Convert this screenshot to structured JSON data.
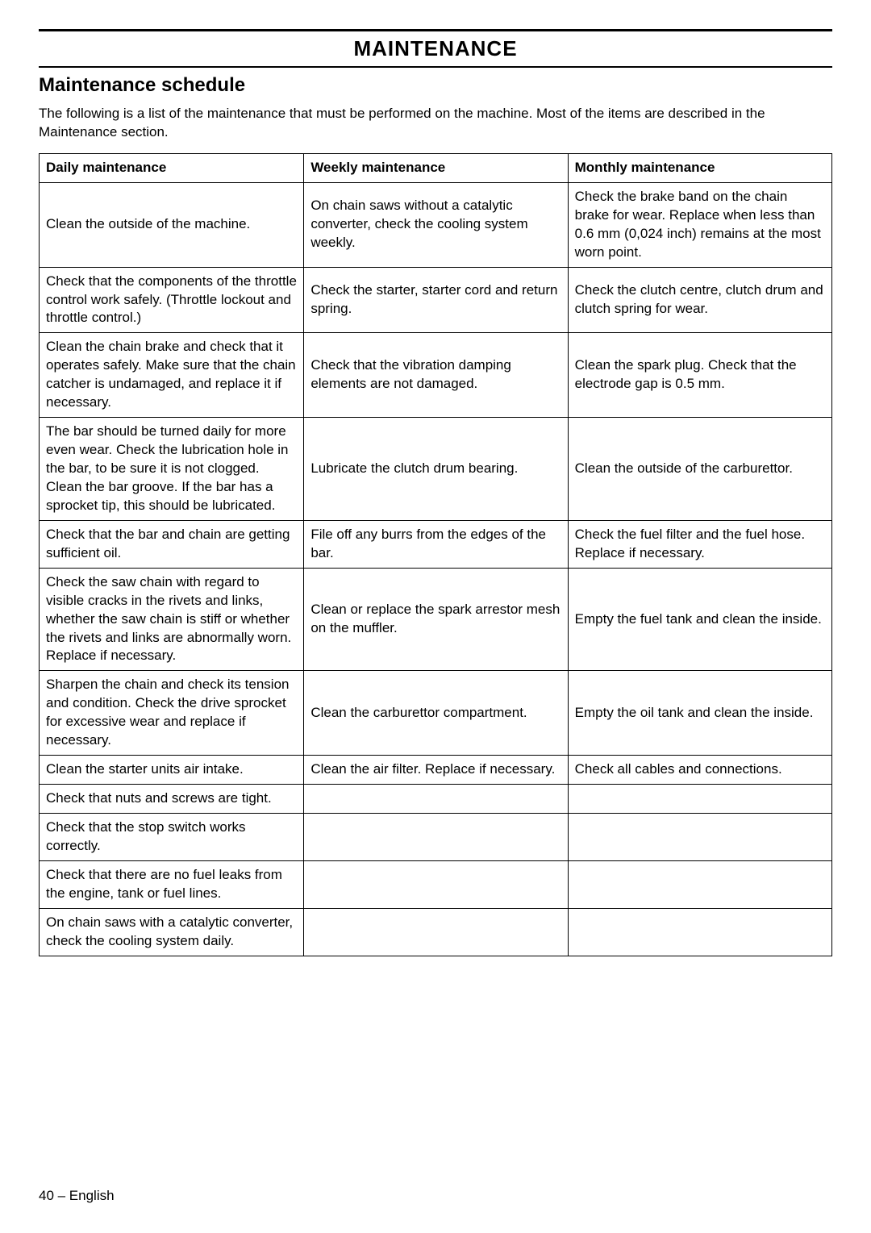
{
  "page_title": "MAINTENANCE",
  "section_title": "Maintenance schedule",
  "intro": "The following is a list of the maintenance that must be performed on the machine. Most of the items are described in the Maintenance section.",
  "footer": "40 – English",
  "table": {
    "columns": [
      "Daily maintenance",
      "Weekly maintenance",
      "Monthly maintenance"
    ],
    "column_widths": [
      "33.4%",
      "33.3%",
      "33.3%"
    ],
    "header_fontsize": 17,
    "body_fontsize": 17,
    "rows": [
      [
        "Clean the outside of the machine.",
        "On chain saws without a catalytic converter, check the cooling system weekly.",
        "Check the brake band on the chain brake for wear. Replace when less than 0.6 mm (0,024 inch) remains at the most worn point."
      ],
      [
        "Check that the components of the throttle control work safely. (Throttle lockout and throttle control.)",
        "Check the starter, starter cord and return spring.",
        "Check the clutch centre, clutch drum and clutch spring for wear."
      ],
      [
        "Clean the chain brake and check that it operates safely. Make sure that the chain catcher is undamaged, and replace it if necessary.",
        "Check that the vibration damping elements are not damaged.",
        "Clean the spark plug. Check that the electrode gap is 0.5 mm."
      ],
      [
        "The bar should be turned daily for more even wear. Check the lubrication hole in the bar, to be sure it is not clogged. Clean the bar groove. If the bar has a sprocket tip, this should be lubricated.",
        "Lubricate the clutch drum bearing.",
        "Clean the outside of the carburettor."
      ],
      [
        "Check that the bar and chain are getting sufficient oil.",
        "File off any burrs from the edges of the bar.",
        "Check the fuel filter and the fuel hose. Replace if necessary."
      ],
      [
        "Check the saw chain with regard to visible cracks in the rivets and links, whether the saw chain is stiff or whether the rivets and links are abnormally worn. Replace if necessary.",
        "Clean or replace the spark arrestor mesh on the muffler.",
        "Empty the fuel tank and clean the inside."
      ],
      [
        "Sharpen the chain and check its tension and condition. Check the drive sprocket for excessive wear and replace if necessary.",
        "Clean the carburettor compartment.",
        "Empty the oil tank and clean the inside."
      ],
      [
        "Clean the starter units air intake.",
        "Clean the air filter. Replace if necessary.",
        "Check all cables and connections."
      ],
      [
        "Check that nuts and screws are tight.",
        "",
        ""
      ],
      [
        "Check that the stop switch works correctly.",
        "",
        ""
      ],
      [
        "Check that there are no fuel leaks from the engine, tank or fuel lines.",
        "",
        ""
      ],
      [
        "On chain saws with a catalytic converter, check the cooling system daily.",
        "",
        ""
      ]
    ]
  },
  "typography": {
    "page_title_fontsize": 26,
    "section_title_fontsize": 24,
    "intro_fontsize": 17,
    "footer_fontsize": 17
  },
  "colors": {
    "background": "#ffffff",
    "text": "#000000",
    "border": "#000000"
  }
}
